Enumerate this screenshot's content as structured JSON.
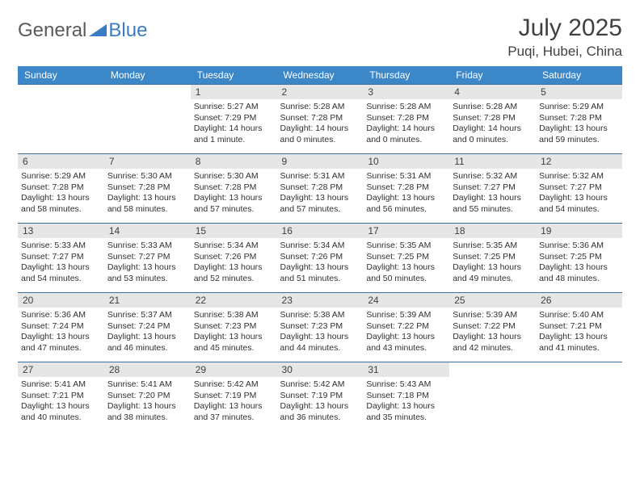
{
  "brand": {
    "part1": "General",
    "part2": "Blue"
  },
  "title": "July 2025",
  "location": "Puqi, Hubei, China",
  "colors": {
    "header_bg": "#3b87c8",
    "header_text": "#ffffff",
    "daynum_bg": "#e6e6e6",
    "cell_border": "#3b6fa0",
    "body_text": "#303030",
    "title_text": "#404040",
    "brand_gray": "#5a5a5a",
    "brand_blue": "#3b7cc4"
  },
  "weekdays": [
    "Sunday",
    "Monday",
    "Tuesday",
    "Wednesday",
    "Thursday",
    "Friday",
    "Saturday"
  ],
  "weeks": [
    [
      null,
      null,
      {
        "n": "1",
        "sr": "5:27 AM",
        "ss": "7:29 PM",
        "dl": "14 hours and 1 minute."
      },
      {
        "n": "2",
        "sr": "5:28 AM",
        "ss": "7:28 PM",
        "dl": "14 hours and 0 minutes."
      },
      {
        "n": "3",
        "sr": "5:28 AM",
        "ss": "7:28 PM",
        "dl": "14 hours and 0 minutes."
      },
      {
        "n": "4",
        "sr": "5:28 AM",
        "ss": "7:28 PM",
        "dl": "14 hours and 0 minutes."
      },
      {
        "n": "5",
        "sr": "5:29 AM",
        "ss": "7:28 PM",
        "dl": "13 hours and 59 minutes."
      }
    ],
    [
      {
        "n": "6",
        "sr": "5:29 AM",
        "ss": "7:28 PM",
        "dl": "13 hours and 58 minutes."
      },
      {
        "n": "7",
        "sr": "5:30 AM",
        "ss": "7:28 PM",
        "dl": "13 hours and 58 minutes."
      },
      {
        "n": "8",
        "sr": "5:30 AM",
        "ss": "7:28 PM",
        "dl": "13 hours and 57 minutes."
      },
      {
        "n": "9",
        "sr": "5:31 AM",
        "ss": "7:28 PM",
        "dl": "13 hours and 57 minutes."
      },
      {
        "n": "10",
        "sr": "5:31 AM",
        "ss": "7:28 PM",
        "dl": "13 hours and 56 minutes."
      },
      {
        "n": "11",
        "sr": "5:32 AM",
        "ss": "7:27 PM",
        "dl": "13 hours and 55 minutes."
      },
      {
        "n": "12",
        "sr": "5:32 AM",
        "ss": "7:27 PM",
        "dl": "13 hours and 54 minutes."
      }
    ],
    [
      {
        "n": "13",
        "sr": "5:33 AM",
        "ss": "7:27 PM",
        "dl": "13 hours and 54 minutes."
      },
      {
        "n": "14",
        "sr": "5:33 AM",
        "ss": "7:27 PM",
        "dl": "13 hours and 53 minutes."
      },
      {
        "n": "15",
        "sr": "5:34 AM",
        "ss": "7:26 PM",
        "dl": "13 hours and 52 minutes."
      },
      {
        "n": "16",
        "sr": "5:34 AM",
        "ss": "7:26 PM",
        "dl": "13 hours and 51 minutes."
      },
      {
        "n": "17",
        "sr": "5:35 AM",
        "ss": "7:25 PM",
        "dl": "13 hours and 50 minutes."
      },
      {
        "n": "18",
        "sr": "5:35 AM",
        "ss": "7:25 PM",
        "dl": "13 hours and 49 minutes."
      },
      {
        "n": "19",
        "sr": "5:36 AM",
        "ss": "7:25 PM",
        "dl": "13 hours and 48 minutes."
      }
    ],
    [
      {
        "n": "20",
        "sr": "5:36 AM",
        "ss": "7:24 PM",
        "dl": "13 hours and 47 minutes."
      },
      {
        "n": "21",
        "sr": "5:37 AM",
        "ss": "7:24 PM",
        "dl": "13 hours and 46 minutes."
      },
      {
        "n": "22",
        "sr": "5:38 AM",
        "ss": "7:23 PM",
        "dl": "13 hours and 45 minutes."
      },
      {
        "n": "23",
        "sr": "5:38 AM",
        "ss": "7:23 PM",
        "dl": "13 hours and 44 minutes."
      },
      {
        "n": "24",
        "sr": "5:39 AM",
        "ss": "7:22 PM",
        "dl": "13 hours and 43 minutes."
      },
      {
        "n": "25",
        "sr": "5:39 AM",
        "ss": "7:22 PM",
        "dl": "13 hours and 42 minutes."
      },
      {
        "n": "26",
        "sr": "5:40 AM",
        "ss": "7:21 PM",
        "dl": "13 hours and 41 minutes."
      }
    ],
    [
      {
        "n": "27",
        "sr": "5:41 AM",
        "ss": "7:21 PM",
        "dl": "13 hours and 40 minutes."
      },
      {
        "n": "28",
        "sr": "5:41 AM",
        "ss": "7:20 PM",
        "dl": "13 hours and 38 minutes."
      },
      {
        "n": "29",
        "sr": "5:42 AM",
        "ss": "7:19 PM",
        "dl": "13 hours and 37 minutes."
      },
      {
        "n": "30",
        "sr": "5:42 AM",
        "ss": "7:19 PM",
        "dl": "13 hours and 36 minutes."
      },
      {
        "n": "31",
        "sr": "5:43 AM",
        "ss": "7:18 PM",
        "dl": "13 hours and 35 minutes."
      },
      null,
      null
    ]
  ],
  "labels": {
    "sunrise": "Sunrise:",
    "sunset": "Sunset:",
    "daylight": "Daylight:"
  }
}
